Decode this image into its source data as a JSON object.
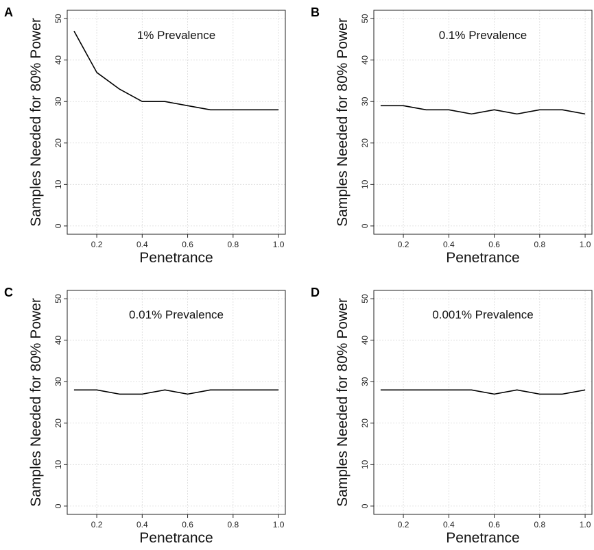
{
  "chart_data": [
    {
      "panel": "A",
      "type": "line",
      "title": "1% Prevalence",
      "xlabel": "Penetrance",
      "ylabel": "Samples Needed for 80% Power",
      "x": [
        0.1,
        0.2,
        0.3,
        0.4,
        0.5,
        0.6,
        0.7,
        0.8,
        0.9,
        1.0
      ],
      "y": [
        47,
        37,
        33,
        30,
        30,
        29,
        28,
        28,
        28,
        28
      ],
      "xticks": [
        0.2,
        0.4,
        0.6,
        0.8,
        1.0
      ],
      "xtick_labels": [
        "0.2",
        "0.4",
        "0.6",
        "0.8",
        "1.0"
      ],
      "yticks": [
        0,
        10,
        20,
        30,
        40,
        50
      ],
      "ytick_labels": [
        "0",
        "10",
        "20",
        "30",
        "40",
        "50"
      ],
      "xlim": [
        0.07,
        1.03
      ],
      "ylim": [
        -2,
        52
      ],
      "grid": true
    },
    {
      "panel": "B",
      "type": "line",
      "title": "0.1% Prevalence",
      "xlabel": "Penetrance",
      "ylabel": "Samples Needed for 80% Power",
      "x": [
        0.1,
        0.2,
        0.3,
        0.4,
        0.5,
        0.6,
        0.7,
        0.8,
        0.9,
        1.0
      ],
      "y": [
        29,
        29,
        28,
        28,
        27,
        28,
        27,
        28,
        28,
        27
      ],
      "xticks": [
        0.2,
        0.4,
        0.6,
        0.8,
        1.0
      ],
      "xtick_labels": [
        "0.2",
        "0.4",
        "0.6",
        "0.8",
        "1.0"
      ],
      "yticks": [
        0,
        10,
        20,
        30,
        40,
        50
      ],
      "ytick_labels": [
        "0",
        "10",
        "20",
        "30",
        "40",
        "50"
      ],
      "xlim": [
        0.07,
        1.03
      ],
      "ylim": [
        -2,
        52
      ],
      "grid": true
    },
    {
      "panel": "C",
      "type": "line",
      "title": "0.01% Prevalence",
      "xlabel": "Penetrance",
      "ylabel": "Samples Needed for 80% Power",
      "x": [
        0.1,
        0.2,
        0.3,
        0.4,
        0.5,
        0.6,
        0.7,
        0.8,
        0.9,
        1.0
      ],
      "y": [
        28,
        28,
        27,
        27,
        28,
        27,
        28,
        28,
        28,
        28
      ],
      "xticks": [
        0.2,
        0.4,
        0.6,
        0.8,
        1.0
      ],
      "xtick_labels": [
        "0.2",
        "0.4",
        "0.6",
        "0.8",
        "1.0"
      ],
      "yticks": [
        0,
        10,
        20,
        30,
        40,
        50
      ],
      "ytick_labels": [
        "0",
        "10",
        "20",
        "30",
        "40",
        "50"
      ],
      "xlim": [
        0.07,
        1.03
      ],
      "ylim": [
        -2,
        52
      ],
      "grid": true
    },
    {
      "panel": "D",
      "type": "line",
      "title": "0.001% Prevalence",
      "xlabel": "Penetrance",
      "ylabel": "Samples Needed for 80% Power",
      "x": [
        0.1,
        0.2,
        0.3,
        0.4,
        0.5,
        0.6,
        0.7,
        0.8,
        0.9,
        1.0
      ],
      "y": [
        28,
        28,
        28,
        28,
        28,
        27,
        28,
        27,
        27,
        28
      ],
      "xticks": [
        0.2,
        0.4,
        0.6,
        0.8,
        1.0
      ],
      "xtick_labels": [
        "0.2",
        "0.4",
        "0.6",
        "0.8",
        "1.0"
      ],
      "yticks": [
        0,
        10,
        20,
        30,
        40,
        50
      ],
      "ytick_labels": [
        "0",
        "10",
        "20",
        "30",
        "40",
        "50"
      ],
      "xlim": [
        0.07,
        1.03
      ],
      "ylim": [
        -2,
        52
      ],
      "grid": true
    }
  ],
  "colors": {
    "line": "#000000",
    "grid": "#d9d9d9",
    "axis": "#222222"
  }
}
